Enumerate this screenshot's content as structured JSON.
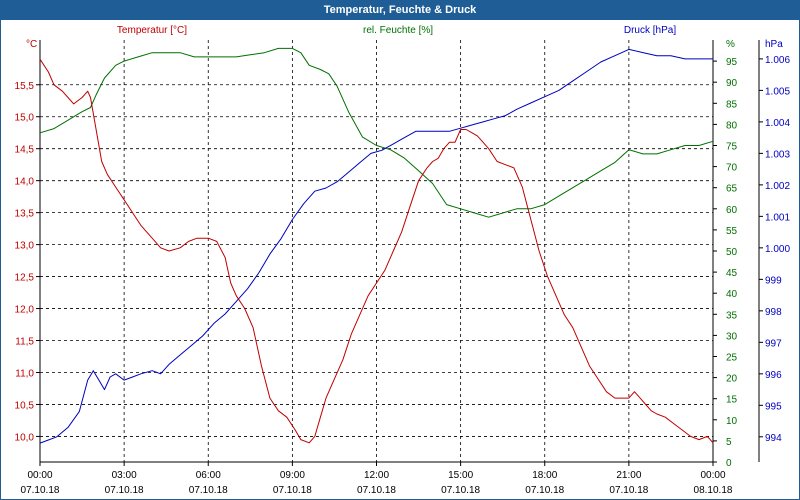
{
  "window": {
    "title": "Temperatur, Feuchte & Druck"
  },
  "chart_data": {
    "type": "line",
    "title": "Temperatur, Feuchte & Druck",
    "colors": {
      "temperature": "#c00000",
      "humidity": "#007000",
      "pressure": "#0000c0",
      "frame": "#1f5d96"
    },
    "x_ticks": [
      {
        "time": "00:00",
        "date": "07.10.18"
      },
      {
        "time": "03:00",
        "date": "07.10.18"
      },
      {
        "time": "06:00",
        "date": "07.10.18"
      },
      {
        "time": "09:00",
        "date": "07.10.18"
      },
      {
        "time": "12:00",
        "date": "07.10.18"
      },
      {
        "time": "15:00",
        "date": "07.10.18"
      },
      {
        "time": "18:00",
        "date": "07.10.18"
      },
      {
        "time": "21:00",
        "date": "07.10.18"
      },
      {
        "time": "00:00",
        "date": "08.10.18"
      }
    ],
    "xlim": [
      0,
      24
    ],
    "axes": {
      "temperature": {
        "label": "Temperatur [°C]",
        "unit": "°C",
        "ylim": [
          9.6,
          16.2
        ],
        "ticks": [
          {
            "value": 10.0,
            "label": "10,0"
          },
          {
            "value": 10.5,
            "label": "10,5"
          },
          {
            "value": 11.0,
            "label": "11,0"
          },
          {
            "value": 11.5,
            "label": "11,5"
          },
          {
            "value": 12.0,
            "label": "12,0"
          },
          {
            "value": 12.5,
            "label": "12,5"
          },
          {
            "value": 13.0,
            "label": "13,0"
          },
          {
            "value": 13.5,
            "label": "13,5"
          },
          {
            "value": 14.0,
            "label": "14,0"
          },
          {
            "value": 14.5,
            "label": "14,5"
          },
          {
            "value": 15.0,
            "label": "15,0"
          },
          {
            "value": 15.5,
            "label": "15,5"
          }
        ]
      },
      "humidity": {
        "label": "rel. Feuchte [%]",
        "unit": "%",
        "ylim": [
          0,
          100
        ],
        "ticks": [
          {
            "value": 0,
            "label": "0"
          },
          {
            "value": 5,
            "label": "5"
          },
          {
            "value": 10,
            "label": "10"
          },
          {
            "value": 15,
            "label": "15"
          },
          {
            "value": 20,
            "label": "20"
          },
          {
            "value": 25,
            "label": "25"
          },
          {
            "value": 30,
            "label": "30"
          },
          {
            "value": 35,
            "label": "35"
          },
          {
            "value": 40,
            "label": "40"
          },
          {
            "value": 45,
            "label": "45"
          },
          {
            "value": 50,
            "label": "50"
          },
          {
            "value": 55,
            "label": "55"
          },
          {
            "value": 60,
            "label": "60"
          },
          {
            "value": 65,
            "label": "65"
          },
          {
            "value": 70,
            "label": "70"
          },
          {
            "value": 75,
            "label": "75"
          },
          {
            "value": 80,
            "label": "80"
          },
          {
            "value": 85,
            "label": "85"
          },
          {
            "value": 90,
            "label": "90"
          },
          {
            "value": 95,
            "label": "95"
          }
        ]
      },
      "pressure": {
        "label": "Druck [hPa]",
        "unit": "hPa",
        "ylim": [
          993.2,
          1006.6
        ],
        "ticks": [
          {
            "value": 994,
            "label": "994"
          },
          {
            "value": 995,
            "label": "995"
          },
          {
            "value": 996,
            "label": "996"
          },
          {
            "value": 997,
            "label": "997"
          },
          {
            "value": 998,
            "label": "998"
          },
          {
            "value": 999,
            "label": "999"
          },
          {
            "value": 1000,
            "label": "1.000"
          },
          {
            "value": 1001,
            "label": "1.001"
          },
          {
            "value": 1002,
            "label": "1.002"
          },
          {
            "value": 1003,
            "label": "1.003"
          },
          {
            "value": 1004,
            "label": "1.004"
          },
          {
            "value": 1005,
            "label": "1.005"
          },
          {
            "value": 1006,
            "label": "1.006"
          }
        ]
      }
    },
    "grid": true,
    "series": [
      {
        "name": "Temperatur [°C]",
        "axis": "temperature",
        "color": "#c00000",
        "x": [
          0,
          0.3,
          0.5,
          0.8,
          1.0,
          1.2,
          1.5,
          1.7,
          1.8,
          2.0,
          2.2,
          2.4,
          2.7,
          3.0,
          3.3,
          3.6,
          4.0,
          4.3,
          4.6,
          5.0,
          5.3,
          5.6,
          6.0,
          6.3,
          6.6,
          6.8,
          7.0,
          7.3,
          7.6,
          7.9,
          8.2,
          8.5,
          8.8,
          9.1,
          9.3,
          9.6,
          9.8,
          10.0,
          10.2,
          10.5,
          10.8,
          11.1,
          11.4,
          11.7,
          12.0,
          12.3,
          12.6,
          12.9,
          13.2,
          13.5,
          13.8,
          14.0,
          14.2,
          14.4,
          14.6,
          14.8,
          15.0,
          15.2,
          15.4,
          15.6,
          15.8,
          16.0,
          16.3,
          16.6,
          16.9,
          17.2,
          17.5,
          17.8,
          18.1,
          18.4,
          18.7,
          19.0,
          19.3,
          19.6,
          19.9,
          20.2,
          20.5,
          20.8,
          21.0,
          21.2,
          21.4,
          21.6,
          21.8,
          22.0,
          22.3,
          22.6,
          22.9,
          23.2,
          23.5,
          23.8,
          24.0
        ],
        "y": [
          15.9,
          15.7,
          15.5,
          15.4,
          15.3,
          15.2,
          15.3,
          15.4,
          15.3,
          14.8,
          14.3,
          14.1,
          13.9,
          13.7,
          13.5,
          13.3,
          13.1,
          12.95,
          12.9,
          12.95,
          13.05,
          13.1,
          13.1,
          13.05,
          12.8,
          12.4,
          12.2,
          12.0,
          11.7,
          11.1,
          10.6,
          10.4,
          10.3,
          10.1,
          9.95,
          9.9,
          10.0,
          10.3,
          10.6,
          10.9,
          11.2,
          11.6,
          11.9,
          12.2,
          12.4,
          12.6,
          12.9,
          13.2,
          13.6,
          14.0,
          14.2,
          14.3,
          14.35,
          14.5,
          14.6,
          14.6,
          14.8,
          14.8,
          14.75,
          14.7,
          14.6,
          14.5,
          14.3,
          14.25,
          14.2,
          13.9,
          13.4,
          12.9,
          12.5,
          12.2,
          11.9,
          11.7,
          11.4,
          11.1,
          10.9,
          10.7,
          10.6,
          10.6,
          10.6,
          10.7,
          10.6,
          10.5,
          10.4,
          10.35,
          10.3,
          10.2,
          10.1,
          10.0,
          9.95,
          10.0,
          9.9
        ]
      },
      {
        "name": "rel. Feuchte [%]",
        "axis": "humidity",
        "color": "#007000",
        "x": [
          0,
          0.5,
          1.0,
          1.5,
          1.8,
          2.0,
          2.3,
          2.7,
          3.0,
          3.5,
          4.0,
          4.5,
          5.0,
          5.5,
          6.0,
          6.5,
          7.0,
          7.5,
          8.0,
          8.5,
          9.0,
          9.3,
          9.6,
          10.0,
          10.3,
          10.6,
          11.0,
          11.5,
          12.0,
          12.5,
          13.0,
          13.5,
          14.0,
          14.5,
          15.0,
          15.5,
          16.0,
          16.5,
          17.0,
          17.5,
          18.0,
          18.5,
          19.0,
          19.5,
          20.0,
          20.5,
          21.0,
          21.5,
          22.0,
          22.5,
          23.0,
          23.5,
          24.0
        ],
        "y": [
          78,
          79,
          81,
          83,
          84,
          87,
          91,
          94,
          95,
          96,
          97,
          97,
          97,
          96,
          96,
          96,
          96,
          96.5,
          97,
          98,
          98,
          97,
          94,
          93,
          92,
          89,
          83,
          77,
          75,
          74,
          72,
          69,
          66,
          61,
          60,
          59,
          58,
          59,
          60,
          60,
          61,
          63,
          65,
          67,
          69,
          71,
          74,
          73,
          73,
          74,
          75,
          75,
          76
        ]
      },
      {
        "name": "Druck [hPa]",
        "axis": "pressure",
        "color": "#0000c0",
        "x": [
          0,
          0.3,
          0.6,
          1.0,
          1.4,
          1.7,
          1.9,
          2.1,
          2.3,
          2.5,
          2.7,
          3.0,
          3.3,
          3.6,
          4.0,
          4.3,
          4.6,
          5.0,
          5.4,
          5.8,
          6.2,
          6.6,
          7.0,
          7.4,
          7.8,
          8.2,
          8.6,
          9.0,
          9.4,
          9.8,
          10.2,
          10.6,
          11.0,
          11.4,
          11.8,
          12.2,
          12.6,
          13.0,
          13.4,
          13.8,
          14.2,
          14.6,
          15.0,
          15.4,
          15.8,
          16.2,
          16.6,
          17.0,
          17.5,
          18.0,
          18.5,
          19.0,
          19.5,
          20.0,
          20.5,
          21.0,
          21.5,
          22.0,
          22.5,
          23.0,
          23.5,
          24.0
        ],
        "y": [
          993.8,
          993.9,
          994.0,
          994.3,
          994.8,
          995.8,
          996.1,
          995.8,
          995.5,
          995.9,
          996.0,
          995.8,
          995.9,
          996.0,
          996.1,
          996.0,
          996.3,
          996.6,
          996.9,
          997.2,
          997.6,
          997.9,
          998.3,
          998.7,
          999.2,
          999.8,
          1000.3,
          1000.9,
          1001.4,
          1001.8,
          1001.9,
          1002.1,
          1002.4,
          1002.7,
          1003.0,
          1003.1,
          1003.3,
          1003.5,
          1003.7,
          1003.7,
          1003.7,
          1003.7,
          1003.8,
          1003.9,
          1004.0,
          1004.1,
          1004.2,
          1004.4,
          1004.6,
          1004.8,
          1005.0,
          1005.3,
          1005.6,
          1005.9,
          1006.1,
          1006.3,
          1006.2,
          1006.1,
          1006.1,
          1006.0,
          1006.0,
          1006.0
        ]
      }
    ]
  }
}
